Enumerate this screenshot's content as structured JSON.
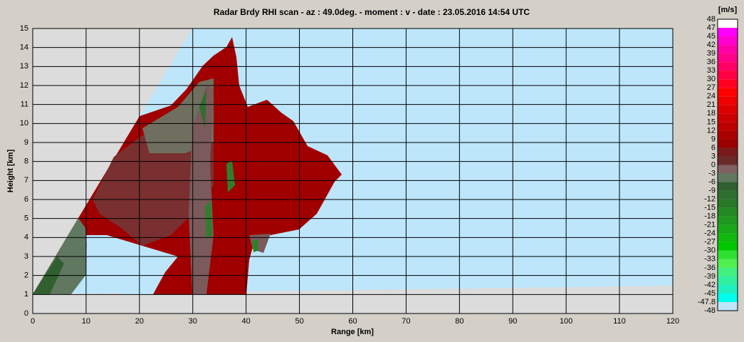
{
  "chart_data": {
    "type": "rhi",
    "title": "Radar Brdy RHI scan  -  az : 49.0deg.  -  moment : v  -  date : 23.05.2016  14:54 UTC",
    "x_label": "Range [km]",
    "y_label": "Height [km]",
    "xlim": [
      0,
      120
    ],
    "ylim": [
      0,
      15
    ],
    "xticks": [
      0,
      10,
      20,
      30,
      40,
      50,
      60,
      70,
      80,
      90,
      100,
      110,
      120
    ],
    "yticks": [
      0,
      1,
      2,
      3,
      4,
      5,
      6,
      7,
      8,
      9,
      10,
      11,
      12,
      13,
      14,
      15
    ],
    "grid": true,
    "colorbar": {
      "unit": "[m/s]",
      "levels": [
        48,
        47,
        45,
        42,
        39,
        36,
        33,
        30,
        27,
        24,
        21,
        18,
        15,
        12,
        9,
        6,
        3,
        0,
        -3,
        -6,
        -9,
        -12,
        -15,
        -18,
        -21,
        -24,
        -27,
        -30,
        -33,
        -36,
        -39,
        -42,
        -45,
        -47.8,
        -48
      ],
      "colors": [
        "#ffffff",
        "#ff00ff",
        "#ff00d0",
        "#ff00a8",
        "#ff0088",
        "#ff0066",
        "#ff0044",
        "#ff0022",
        "#ff0000",
        "#ee0000",
        "#dd0000",
        "#cc0000",
        "#bb0000",
        "#aa0000",
        "#990000",
        "#7a1a1a",
        "#6a2a2a",
        "#806060",
        "#607860",
        "#306030",
        "#2e6e2e",
        "#287828",
        "#228822",
        "#1e981e",
        "#18a818",
        "#10b810",
        "#00c800",
        "#30e030",
        "#50f050",
        "#40f080",
        "#30f0a0",
        "#20f0c0",
        "#00ffee",
        "#bde6fb"
      ]
    }
  }
}
